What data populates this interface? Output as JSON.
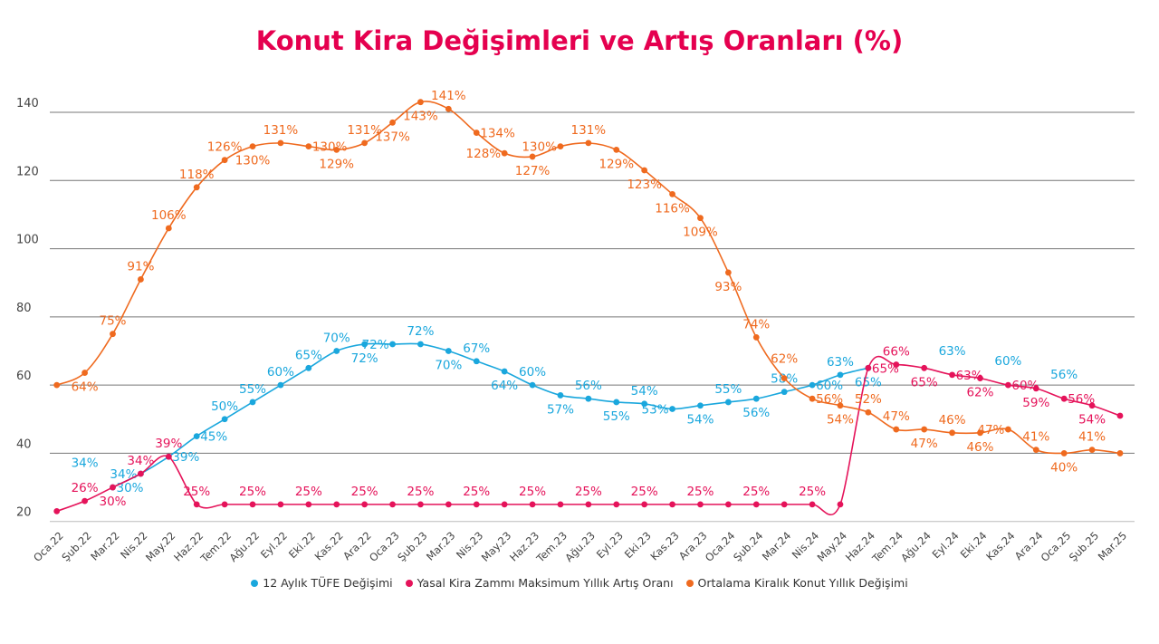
{
  "chart_data": {
    "type": "line",
    "title": "Konut Kira Değişimleri ve Artış Oranları (%)",
    "ylim": [
      20,
      140
    ],
    "yticks": [
      20,
      40,
      60,
      80,
      100,
      120,
      140
    ],
    "grid": true,
    "legend_placement": "bottom",
    "categories": [
      "Oca.22",
      "Şub.22",
      "Mar.22",
      "Nis.22",
      "May.22",
      "Haz.22",
      "Tem.22",
      "Ağu.22",
      "Eyl.22",
      "Eki.22",
      "Kas.22",
      "Ara.22",
      "Oca.23",
      "Şub.23",
      "Mar.23",
      "Nis.23",
      "May.23",
      "Haz.23",
      "Tem.23",
      "Ağu.23",
      "Eyl.23",
      "Eki.23",
      "Kas.23",
      "Ara.23",
      "Oca.24",
      "Şub.24",
      "Mar.24",
      "Nis.24",
      "May.24",
      "Haz.24",
      "Tem.24",
      "Ağu.24",
      "Eyl.24",
      "Eki.24",
      "Kas.24",
      "Ara.24",
      "Oca.25",
      "Şub.25",
      "Mar.25"
    ],
    "series": [
      {
        "name": "12 Aylık TÜFE Değişimi",
        "color": "#1aa7dd",
        "values": [
          null,
          null,
          30,
          34,
          39,
          45,
          50,
          55,
          60,
          65,
          70,
          72,
          72,
          72,
          70,
          67,
          64,
          60,
          57,
          56,
          55,
          54.5,
          53,
          54,
          55,
          56,
          58,
          60,
          63,
          65,
          null,
          null,
          null,
          null,
          null,
          null,
          null,
          null,
          null
        ],
        "labels": [
          null,
          null,
          "30%",
          "34%",
          "39%",
          "45%",
          "50%",
          "55%",
          "60%",
          "65%",
          "70%",
          "72%",
          "72%",
          "72%",
          "70%",
          "67%",
          "64%",
          "60%",
          "57%",
          "56%",
          "55%",
          "54%",
          "53%",
          "54%",
          "55%",
          "56%",
          "58%",
          "60%",
          "63%",
          "65%",
          null,
          null,
          null,
          null,
          null,
          null,
          null,
          null,
          null
        ]
      },
      {
        "name": "Yasal Kira Zammı Maksimum Yıllık Artış Oranı",
        "color": "#e5135a",
        "values": [
          23,
          26,
          30,
          34,
          39,
          25,
          25,
          25,
          25,
          25,
          25,
          25,
          25,
          25,
          25,
          25,
          25,
          25,
          25,
          25,
          25,
          25,
          25,
          25,
          25,
          25,
          25,
          25,
          25,
          65,
          66,
          65,
          63,
          62,
          60,
          59,
          56,
          54,
          51
        ],
        "labels": [
          null,
          "26%",
          "30%",
          "34%",
          "39%",
          "25%",
          null,
          "25%",
          null,
          "25%",
          null,
          "25%",
          null,
          "25%",
          null,
          "25%",
          null,
          "25%",
          null,
          "25%",
          null,
          "25%",
          null,
          "25%",
          null,
          "25%",
          null,
          "25%",
          null,
          "65%",
          "66%",
          "65%",
          "63%",
          "62%",
          "60%",
          "59%",
          "56%",
          "54%",
          null
        ]
      },
      {
        "name": "Ortalama Kiralık Konut Yıllık Değişimi",
        "color": "#ef6a1f",
        "values": [
          60,
          63.6,
          75,
          91,
          106,
          118,
          126,
          130,
          131,
          130,
          129,
          131,
          137,
          143,
          141,
          134,
          128,
          127,
          130,
          131,
          129,
          123,
          116,
          109,
          93,
          74,
          62,
          56,
          54,
          52,
          47,
          47,
          46,
          46,
          47,
          41,
          40,
          41,
          40
        ],
        "labels": [
          null,
          "64%",
          "75%",
          "91%",
          "106%",
          "118%",
          "126%",
          "130%",
          "131%",
          "130%",
          "129%",
          "131%",
          "137%",
          "143%",
          "141%",
          "134%",
          "128%",
          "127%",
          "130%",
          "131%",
          "129%",
          "123%",
          "116%",
          "109%",
          "93%",
          "74%",
          "62%",
          "56%",
          "54%",
          "52%",
          "47%",
          "47%",
          "46%",
          "46%",
          "47%",
          "41%",
          "40%",
          "41%",
          null
        ]
      }
    ],
    "annotations": [
      {
        "category": "Oca.22",
        "text": "34%",
        "color": "#1aa7dd"
      },
      {
        "category": "Eyl.24",
        "text": "63%",
        "color": "#1aa7dd"
      },
      {
        "category": "Kas.24",
        "text": "60%",
        "color": "#1aa7dd"
      },
      {
        "category": "Oca.25",
        "text": "56%",
        "color": "#1aa7dd"
      }
    ]
  }
}
